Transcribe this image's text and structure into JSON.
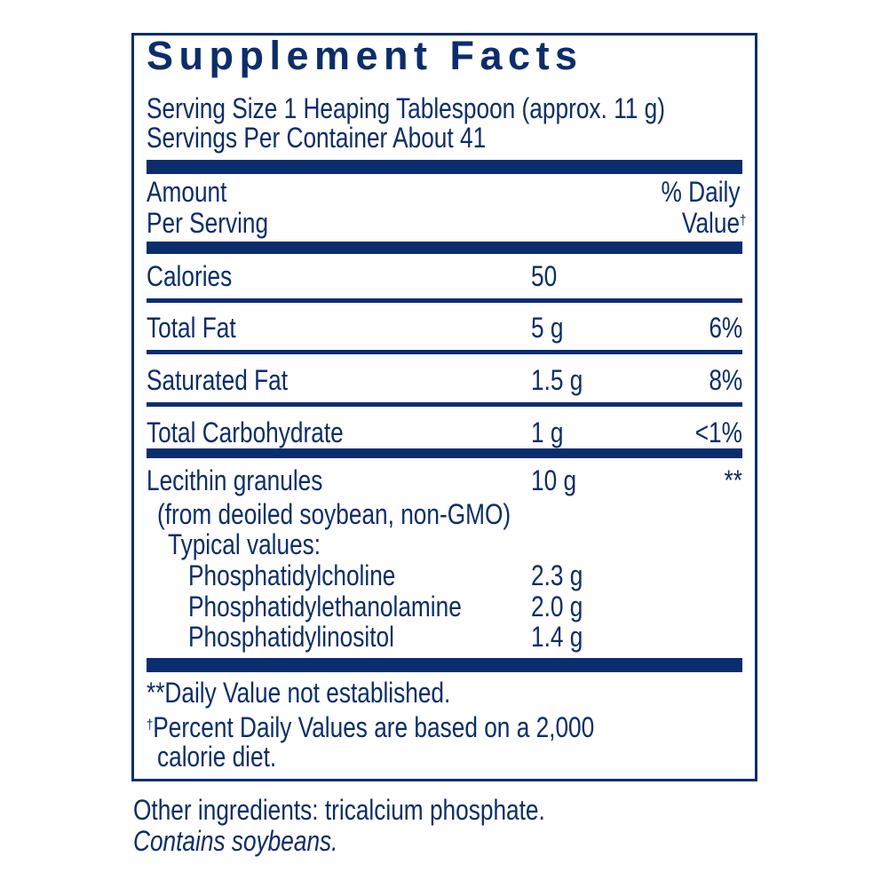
{
  "title": "Supplement Facts",
  "serving_size": "Serving Size 1 Heaping Tablespoon (approx. 11 g)",
  "servings_per_container": "Servings Per Container About 41",
  "header": {
    "amount_line1": "Amount",
    "amount_line2": "Per Serving",
    "dv_line1": "% Daily",
    "dv_line2": "Value",
    "dv_mark": "†"
  },
  "rows": [
    {
      "name": "Calories",
      "amount": "50",
      "dv": ""
    },
    {
      "name": "Total Fat",
      "amount": "5 g",
      "dv": "6%"
    },
    {
      "name": "Saturated Fat",
      "amount": "1.5 g",
      "dv": "8%"
    },
    {
      "name": "Total Carbohydrate",
      "amount": "1 g",
      "dv": "<1%"
    },
    {
      "name": "Lecithin granules",
      "amount": "10 g",
      "dv": "**"
    }
  ],
  "lecithin_source": "(from deoiled soybean, non-GMO)",
  "typical_values_label": "Typical values:",
  "typical_values": [
    {
      "name": "Phosphatidylcholine",
      "amount": "2.3 g"
    },
    {
      "name": "Phosphatidylethanolamine",
      "amount": "2.0 g"
    },
    {
      "name": "Phosphatidylinositol",
      "amount": "1.4 g"
    }
  ],
  "footnotes": {
    "dv_not_established": "**Daily Value not established.",
    "dagger": "†",
    "percent_dv_line1": "Percent Daily Values are based on a 2,000",
    "percent_dv_line2": "calorie diet."
  },
  "other_ingredients": "Other ingredients: tricalcium phosphate.",
  "allergen": "Contains soybeans.",
  "colors": {
    "label_navy": "#0a2d6e"
  }
}
